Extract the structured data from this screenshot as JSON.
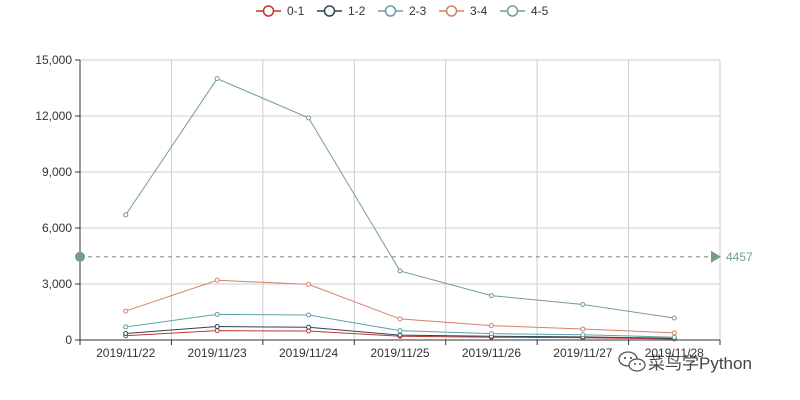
{
  "chart_data": {
    "type": "line",
    "categories": [
      "2019/11/22",
      "2019/11/23",
      "2019/11/24",
      "2019/11/25",
      "2019/11/26",
      "2019/11/27",
      "2019/11/28"
    ],
    "series": [
      {
        "name": "0-1",
        "color": "#c23531",
        "values": [
          230,
          500,
          480,
          200,
          150,
          120,
          60
        ]
      },
      {
        "name": "1-2",
        "color": "#2f4554",
        "values": [
          350,
          720,
          680,
          260,
          200,
          170,
          90
        ]
      },
      {
        "name": "2-3",
        "color": "#61a0a8",
        "values": [
          700,
          1370,
          1340,
          500,
          340,
          280,
          150
        ]
      },
      {
        "name": "3-4",
        "color": "#d48265",
        "values": [
          1550,
          3200,
          2980,
          1130,
          770,
          590,
          380
        ]
      },
      {
        "name": "4-5",
        "color": "#749f83",
        "values": [
          6700,
          14000,
          11900,
          3700,
          2380,
          1900,
          1180
        ]
      }
    ],
    "ylim": [
      0,
      15000
    ],
    "yticks": [
      0,
      3000,
      6000,
      9000,
      12000,
      15000
    ],
    "ytick_labels": [
      "0",
      "3,000",
      "6,000",
      "9,000",
      "12,000",
      "15,000"
    ],
    "grid": true,
    "legend_position": "top-center",
    "markline": {
      "value": 4457,
      "label": "4457",
      "color": "#749f83"
    }
  },
  "watermark": {
    "text": "菜鸟学Python"
  }
}
